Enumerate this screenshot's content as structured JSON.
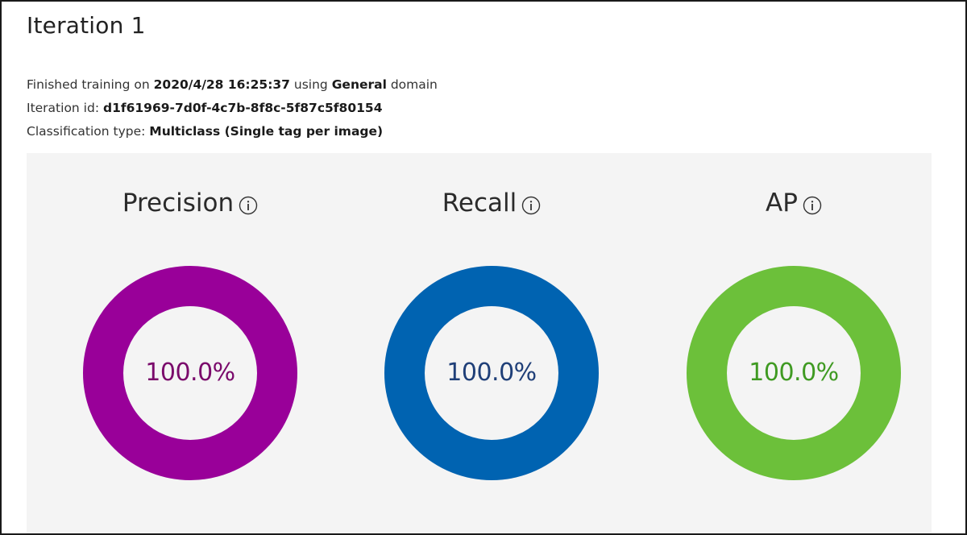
{
  "page": {
    "title": "Iteration 1"
  },
  "info": {
    "line1": {
      "prefix": "Finished training on ",
      "date": "2020/4/28 16:25:37",
      "middle": " using ",
      "domain": "General",
      "suffix": " domain"
    },
    "line2": {
      "prefix": "Iteration id: ",
      "id": "d1f61969-7d0f-4c7b-8f8c-5f87c5f80154"
    },
    "line3": {
      "prefix": "Classification type: ",
      "type": "Multiclass (Single tag per image)"
    }
  },
  "metrics": [
    {
      "label": "Precision",
      "value_text": "100.0%",
      "fraction": 1.0,
      "color": "#990099",
      "text_color": "#7a0a6b",
      "icon": "info-icon"
    },
    {
      "label": "Recall",
      "value_text": "100.0%",
      "fraction": 1.0,
      "color": "#0063b1",
      "text_color": "#1f3f78",
      "icon": "info-icon"
    },
    {
      "label": "AP",
      "value_text": "100.0%",
      "fraction": 1.0,
      "color": "#6cc03a",
      "text_color": "#3f9a22",
      "icon": "info-icon"
    }
  ]
}
